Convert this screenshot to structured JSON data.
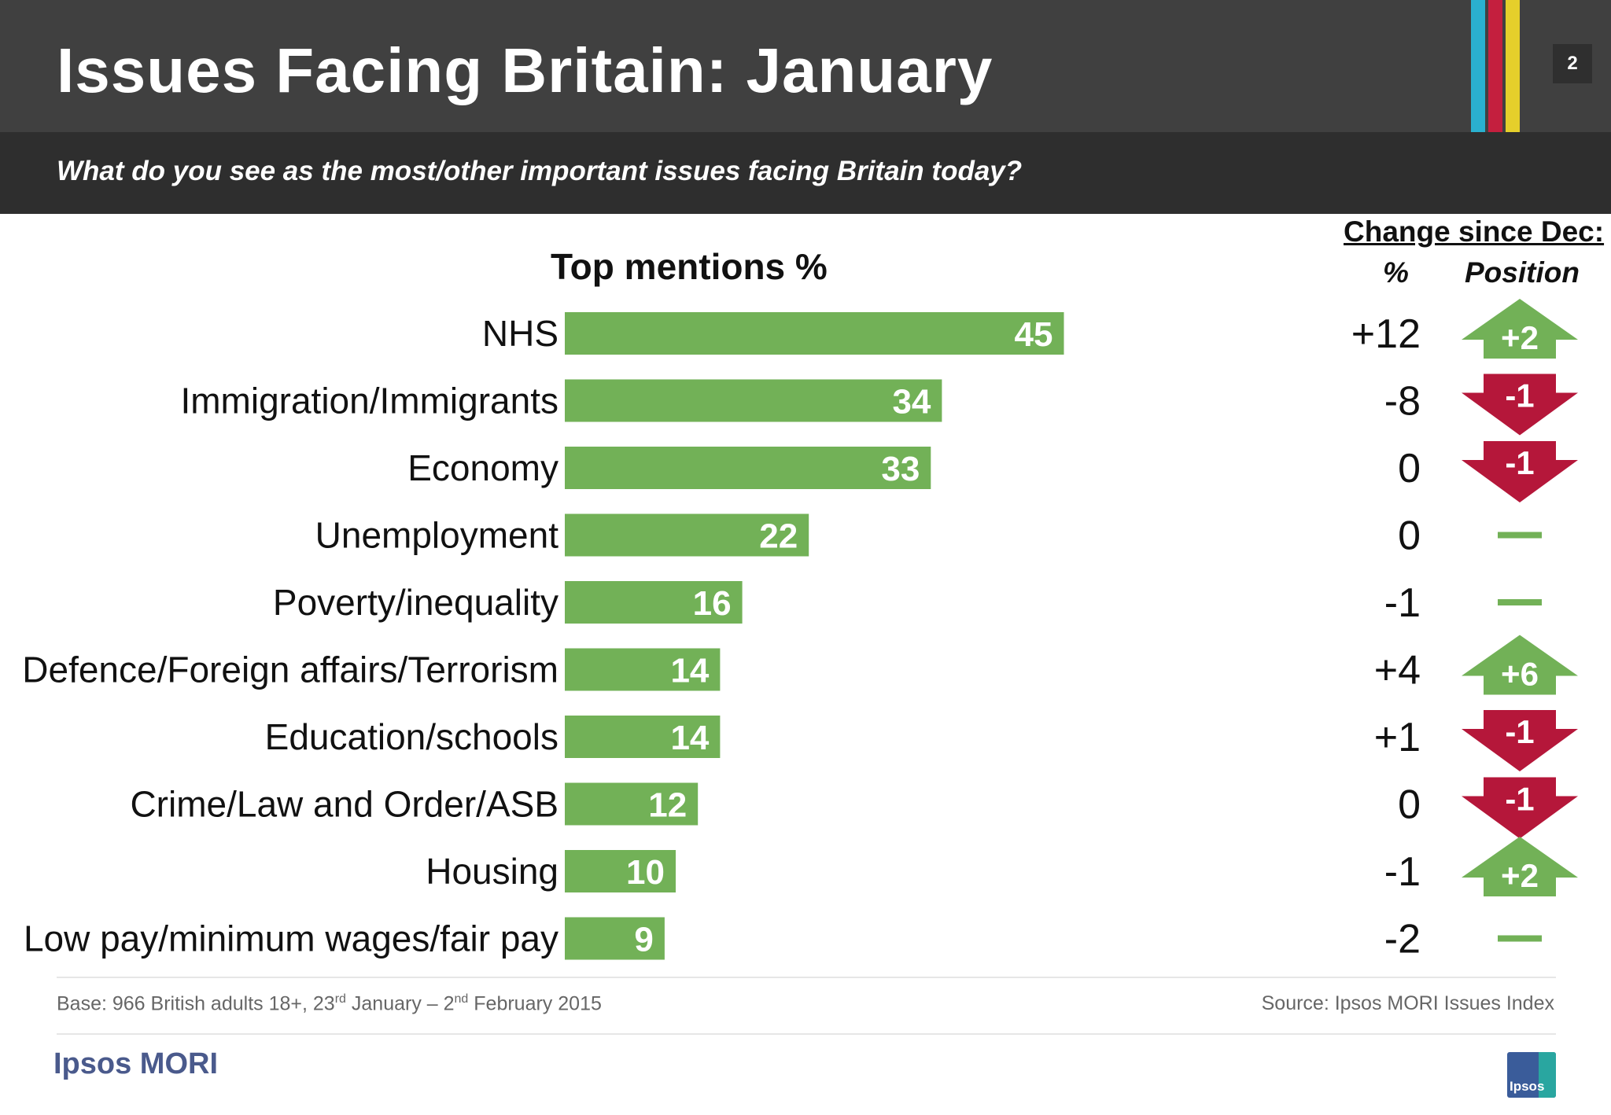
{
  "header": {
    "title": "Issues Facing Britain: January",
    "page_number": "2",
    "stripe_colors": [
      "#2ab0cf",
      "#c41f3e",
      "#e5cf2b"
    ]
  },
  "question": "What do you see as the most/other important issues facing Britain today?",
  "chart_data": {
    "type": "bar",
    "orientation": "horizontal",
    "title": "Top mentions %",
    "categories": [
      "NHS",
      "Immigration/Immigrants",
      "Economy",
      "Unemployment",
      "Poverty/inequality",
      "Defence/Foreign affairs/Terrorism",
      "Education/schools",
      "Crime/Law and Order/ASB",
      "Housing",
      "Low pay/minimum wages/fair pay"
    ],
    "values": [
      45,
      34,
      33,
      22,
      16,
      14,
      14,
      12,
      10,
      9
    ],
    "xlim": [
      0,
      45
    ],
    "bar_color": "#72b157",
    "change_heading": "Change since Dec:",
    "change_pct_label": "%",
    "change_position_label": "Position",
    "change_pct": [
      "+12",
      "-8",
      "0",
      "0",
      "-1",
      "+4",
      "+1",
      "0",
      "-1",
      "-2"
    ],
    "position_change": [
      "+2",
      "-1",
      "-1",
      "",
      "",
      "+6",
      "-1",
      "-1",
      "+2",
      ""
    ],
    "position_direction": [
      "up",
      "down",
      "down",
      "same",
      "same",
      "up",
      "down",
      "down",
      "up",
      "same"
    ],
    "up_color": "#72b157",
    "down_color": "#b5173a",
    "same_color": "#72b157"
  },
  "footer": {
    "base_prefix": "Base: 966 British adults 18+, 23",
    "base_sup1": "rd",
    "base_mid": " January – 2",
    "base_sup2": "nd",
    "base_suffix": " February 2015",
    "source": "Source: Ipsos MORI Issues Index",
    "logo_text": "Ipsos MORI",
    "logo_badge": "Ipsos"
  }
}
